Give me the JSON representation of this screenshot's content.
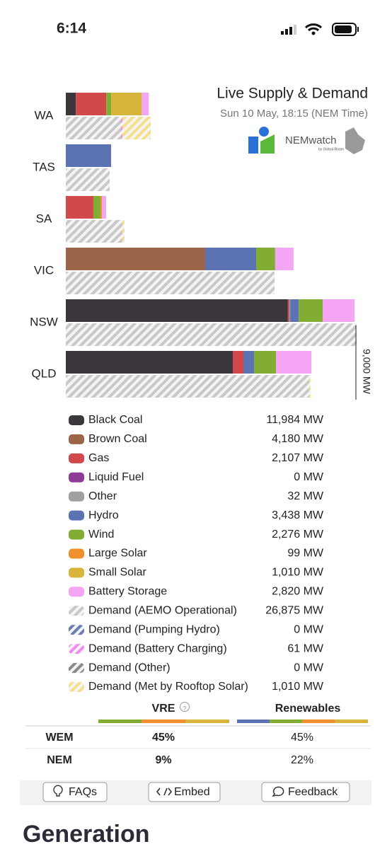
{
  "status_time": "6:14",
  "chart_data": {
    "type": "bar",
    "orientation": "horizontal",
    "stacked": true,
    "title": "Live Supply & Demand",
    "subtitle": "Sun 10 May, 18:15 (NEM Time)",
    "categories": [
      "WA",
      "TAS",
      "SA",
      "VIC",
      "NSW",
      "QLD"
    ],
    "xlim": [
      0,
      9000
    ],
    "xticks": [
      {
        "value": 9000,
        "label": "9,000 MW"
      }
    ],
    "series": [
      {
        "name": "Black Coal",
        "total": "11,984 MW",
        "stack": "supply",
        "color": "#3a363b",
        "values": [
          310,
          0,
          0,
          0,
          6890,
          5180
        ]
      },
      {
        "name": "Brown Coal",
        "total": "4,180 MW",
        "stack": "supply",
        "color": "#9c6448",
        "values": [
          0,
          0,
          0,
          4325,
          0,
          0
        ]
      },
      {
        "name": "Gas",
        "total": "2,107 MW",
        "stack": "supply",
        "color": "#d2494b",
        "values": [
          945,
          0,
          855,
          0,
          45,
          330
        ]
      },
      {
        "name": "Liquid Fuel",
        "total": "0 MW",
        "stack": "supply",
        "color": "#8e3a97",
        "values": [
          0,
          0,
          0,
          0,
          0,
          0
        ]
      },
      {
        "name": "Other",
        "total": "32 MW",
        "stack": "supply",
        "color": "#a0a0a0",
        "values": [
          0,
          0,
          0,
          0,
          25,
          0
        ]
      },
      {
        "name": "Hydro",
        "total": "3,438 MW",
        "stack": "supply",
        "color": "#5b73b3",
        "values": [
          0,
          1405,
          0,
          1580,
          265,
          330
        ]
      },
      {
        "name": "Wind",
        "total": "2,276 MW",
        "stack": "supply",
        "color": "#82ad34",
        "values": [
          155,
          0,
          220,
          590,
          745,
          680
        ]
      },
      {
        "name": "Large Solar",
        "total": "99 MW",
        "stack": "supply",
        "color": "#f0902e",
        "values": [
          0,
          0,
          45,
          0,
          0,
          0
        ]
      },
      {
        "name": "Small Solar",
        "total": "1,010 MW",
        "stack": "supply",
        "color": "#d9b43a",
        "values": [
          945,
          0,
          0,
          0,
          0,
          0
        ]
      },
      {
        "name": "Battery Storage",
        "total": "2,820 MW",
        "stack": "supply",
        "color": "#f4a5f4",
        "values": [
          220,
          0,
          130,
          570,
          990,
          1100
        ]
      },
      {
        "name": "Demand (AEMO Operational)",
        "total": "26,875 MW",
        "stack": "demand",
        "pattern": true,
        "color": "#c8c8c8",
        "values": [
          1710,
          1360,
          1755,
          6475,
          9020,
          7550
        ]
      },
      {
        "name": "Demand (Pumping Hydro)",
        "total": "0 MW",
        "stack": "demand",
        "pattern": true,
        "color": "#6c7fb3",
        "values": [
          0,
          0,
          0,
          0,
          0,
          0
        ]
      },
      {
        "name": "Demand (Battery Charging)",
        "total": "61 MW",
        "stack": "demand",
        "pattern": true,
        "color": "#f08cf0",
        "values": [
          45,
          0,
          0,
          0,
          0,
          0
        ]
      },
      {
        "name": "Demand (Other)",
        "total": "0 MW",
        "stack": "demand",
        "pattern": true,
        "color": "#8a8a8a",
        "values": [
          0,
          0,
          0,
          0,
          0,
          0
        ]
      },
      {
        "name": "Demand (Met by Rooftop Solar)",
        "total": "1,010 MW",
        "stack": "demand",
        "pattern": true,
        "color": "#f5e08a",
        "values": [
          880,
          0,
          65,
          0,
          0,
          45
        ]
      }
    ]
  },
  "logo": {
    "name": "NEMwatch",
    "tagline": "by Global-Roam"
  },
  "table": {
    "headers": [
      "VRE",
      "Renewables"
    ],
    "help_icon": "?",
    "rows": [
      {
        "label": "WEM",
        "vre": "45%",
        "renewables": "45%"
      },
      {
        "label": "NEM",
        "vre": "9%",
        "renewables": "22%"
      }
    ]
  },
  "buttons": [
    "FAQs",
    "Embed",
    "Feedback"
  ],
  "section_heading": "Generation"
}
